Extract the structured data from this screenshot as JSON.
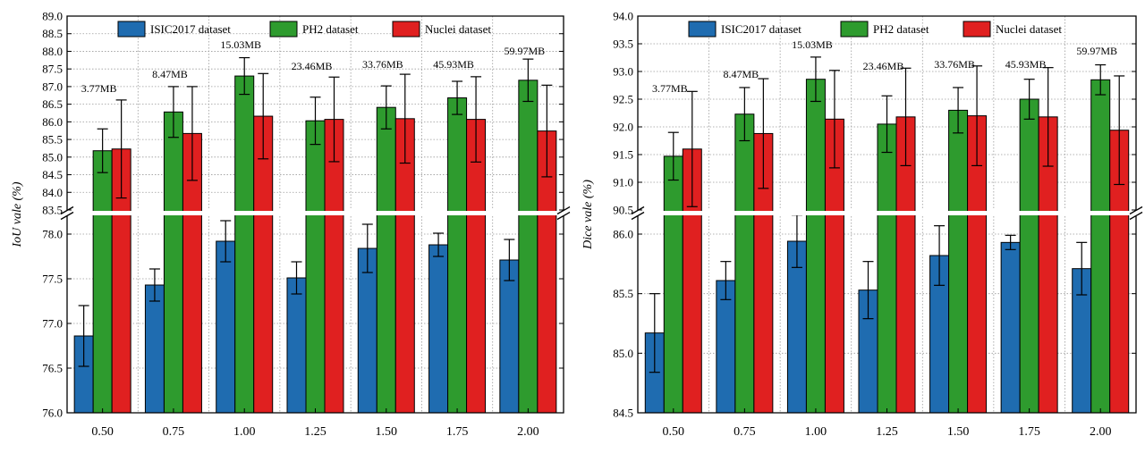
{
  "colors": {
    "isic": "#1f6cb0",
    "ph2": "#2e9b2e",
    "nuclei": "#e02020"
  },
  "chart_data": [
    {
      "type": "bar",
      "ylabel": "IoU vale (%)",
      "categories": [
        "0.50",
        "0.75",
        "1.00",
        "1.25",
        "1.50",
        "1.75",
        "2.00"
      ],
      "size_labels": [
        "3.77MB",
        "8.47MB",
        "15.03MB",
        "23.46MB",
        "33.76MB",
        "45.93MB",
        "59.97MB"
      ],
      "broken_axis": {
        "lower": {
          "ylim": [
            76.0,
            78.2
          ],
          "ticks": [
            "76.0",
            "76.5",
            "77.0",
            "77.5",
            "78.0"
          ]
        },
        "upper": {
          "ylim": [
            83.5,
            89.0
          ],
          "ticks": [
            "83.5",
            "84.0",
            "84.5",
            "85.0",
            "85.5",
            "86.0",
            "86.5",
            "87.0",
            "87.5",
            "88.0",
            "88.5",
            "89.0"
          ]
        }
      },
      "legend": [
        "ISIC2017 dataset",
        "PH2 dataset",
        "Nuclei dataset"
      ],
      "series": [
        {
          "name": "ISIC2017 dataset",
          "values": [
            76.86,
            77.43,
            77.92,
            77.51,
            77.84,
            77.88,
            77.71
          ],
          "errors": [
            0.34,
            0.18,
            0.23,
            0.18,
            0.27,
            0.13,
            0.23
          ]
        },
        {
          "name": "PH2 dataset",
          "values": [
            85.18,
            86.28,
            87.3,
            86.03,
            86.41,
            86.68,
            87.18
          ],
          "errors": [
            0.62,
            0.72,
            0.52,
            0.67,
            0.61,
            0.47,
            0.6
          ]
        },
        {
          "name": "Nuclei dataset",
          "values": [
            85.23,
            85.67,
            86.16,
            86.07,
            86.09,
            86.07,
            85.74
          ],
          "errors": [
            1.39,
            1.33,
            1.21,
            1.2,
            1.26,
            1.21,
            1.3
          ]
        }
      ]
    },
    {
      "type": "bar",
      "ylabel": "Dice vale (%)",
      "categories": [
        "0.50",
        "0.75",
        "1.00",
        "1.25",
        "1.50",
        "1.75",
        "2.00"
      ],
      "size_labels": [
        "3.77MB",
        "8.47MB",
        "15.03MB",
        "23.46MB",
        "33.76MB",
        "45.93MB",
        "59.97MB"
      ],
      "broken_axis": {
        "lower": {
          "ylim": [
            84.5,
            86.15
          ],
          "ticks": [
            "84.5",
            "85.0",
            "85.5",
            "86.0"
          ]
        },
        "upper": {
          "ylim": [
            90.5,
            94.0
          ],
          "ticks": [
            "90.5",
            "91.0",
            "91.5",
            "92.0",
            "92.5",
            "93.0",
            "93.5",
            "94.0"
          ]
        }
      },
      "legend": [
        "ISIC2017 dataset",
        "PH2 dataset",
        "Nuclei dataset"
      ],
      "series": [
        {
          "name": "ISIC2017 dataset",
          "values": [
            85.17,
            85.61,
            85.94,
            85.53,
            85.82,
            85.93,
            85.71
          ],
          "errors": [
            0.33,
            0.16,
            0.22,
            0.24,
            0.25,
            0.06,
            0.22
          ]
        },
        {
          "name": "PH2 dataset",
          "values": [
            91.47,
            92.23,
            92.86,
            92.05,
            92.3,
            92.5,
            92.85
          ],
          "errors": [
            0.43,
            0.48,
            0.4,
            0.51,
            0.41,
            0.36,
            0.27
          ]
        },
        {
          "name": "Nuclei dataset",
          "values": [
            91.6,
            91.88,
            92.14,
            92.18,
            92.2,
            92.18,
            91.94
          ],
          "errors": [
            1.04,
            0.99,
            0.88,
            0.88,
            0.9,
            0.89,
            0.98
          ]
        }
      ]
    }
  ]
}
